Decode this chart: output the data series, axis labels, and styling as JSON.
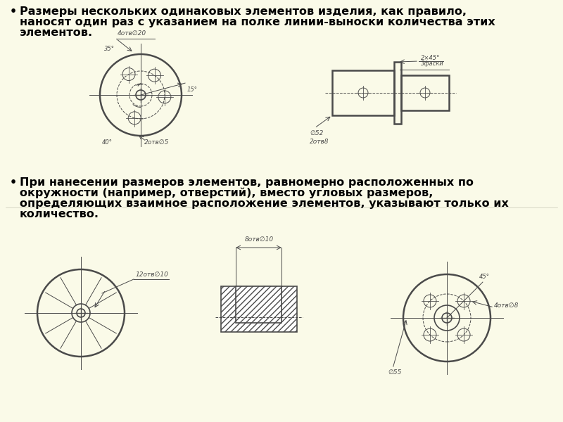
{
  "bg_color": "#FAFAE8",
  "drawing_color": "#4A4A4A",
  "lw_thin": 0.7,
  "lw_main": 1.2,
  "lw_thick": 1.8,
  "bullet1_line1": "Размеры нескольких одинаковых элементов изделия, как правило,",
  "bullet1_line2": "наносят один раз с указанием на полке линии-выноски количества этих",
  "bullet1_line3": "элементов.",
  "bullet2_line1": "При нанесении размеров элементов, равномерно расположенных по",
  "bullet2_line2": "окружности (например, отверстий), вместо угловых размеров,",
  "bullet2_line3": "определяющих взаимное расположение элементов, указывают только их",
  "bullet2_line4": "количество.",
  "fig_width": 8.0,
  "fig_height": 6.0,
  "dpi": 100
}
